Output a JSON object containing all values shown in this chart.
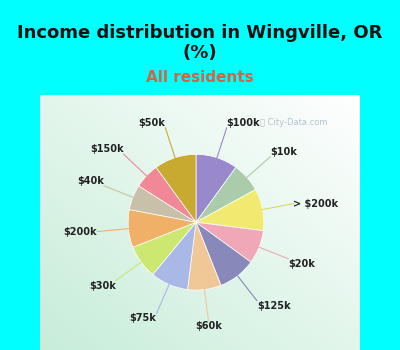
{
  "title": "Income distribution in Wingville, OR\n(%)",
  "subtitle": "All residents",
  "title_fontsize": 13,
  "subtitle_fontsize": 11,
  "title_color": "#111111",
  "subtitle_color": "#cc6644",
  "background_cyan": "#00ffff",
  "watermark": "ⓘ City-Data.com",
  "slices": [
    {
      "label": "$100k",
      "value": 10,
      "color": "#9988cc"
    },
    {
      "label": "$10k",
      "value": 7,
      "color": "#aaccaa"
    },
    {
      "label": "> $200k",
      "value": 10,
      "color": "#f0ea70"
    },
    {
      "label": "$20k",
      "value": 8,
      "color": "#f0a8b8"
    },
    {
      "label": "$125k",
      "value": 9,
      "color": "#8888bb"
    },
    {
      "label": "$60k",
      "value": 8,
      "color": "#f0c898"
    },
    {
      "label": "$75k",
      "value": 9,
      "color": "#aab8e8"
    },
    {
      "label": "$30k",
      "value": 8,
      "color": "#cce870"
    },
    {
      "label": "$200k",
      "value": 9,
      "color": "#f0b068"
    },
    {
      "label": "$40k",
      "value": 6,
      "color": "#c8c0a8"
    },
    {
      "label": "$150k",
      "value": 6,
      "color": "#f08898"
    },
    {
      "label": "$50k",
      "value": 10,
      "color": "#c8aa30"
    }
  ],
  "label_line_colors": {
    "$100k": "#9988cc",
    "$10k": "#aaccaa",
    "> $200k": "#d8d860",
    "$20k": "#f0a8b8",
    "$125k": "#8888bb",
    "$60k": "#f0c898",
    "$75k": "#aab8e8",
    "$30k": "#cce870",
    "$200k": "#f0b068",
    "$40k": "#c8c0a8",
    "$150k": "#f08898",
    "$50k": "#c8aa30"
  }
}
